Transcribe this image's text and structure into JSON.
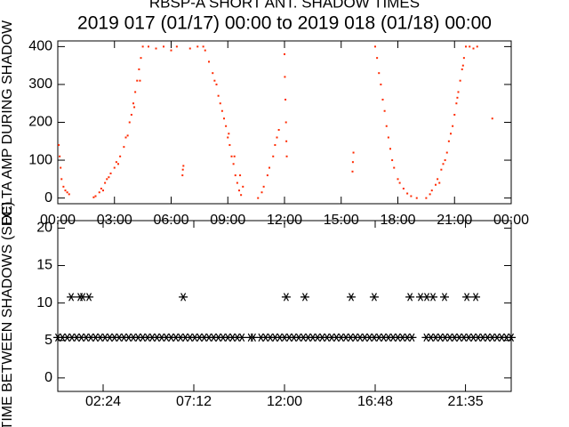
{
  "chart_data": [
    {
      "type": "scatter",
      "marker": "dot",
      "color": "#ff2a00",
      "title": "RBSP-A SHORT ANT. SHADOW TIMES",
      "subtitle": "2019 017 (01/17) 00:00 to 2019 018 (01/18) 00:00",
      "y_label": "DELTA AMP DURING SHADOW",
      "xlim": [
        0,
        24
      ],
      "ylim": [
        -15,
        415
      ],
      "xticks": [
        {
          "value": 0,
          "label": "00:00"
        },
        {
          "value": 3,
          "label": "03:00"
        },
        {
          "value": 6,
          "label": "06:00"
        },
        {
          "value": 9,
          "label": "09:00"
        },
        {
          "value": 12,
          "label": "12:00"
        },
        {
          "value": 15,
          "label": "15:00"
        },
        {
          "value": 18,
          "label": "18:00"
        },
        {
          "value": 21,
          "label": "21:00"
        },
        {
          "value": 24,
          "label": "00:00"
        }
      ],
      "yticks": [
        0,
        100,
        200,
        300,
        400
      ],
      "x": [
        0.05,
        0.1,
        0.15,
        0.2,
        0.3,
        0.4,
        0.5,
        0.6,
        1.9,
        2.0,
        2.2,
        2.3,
        2.5,
        2.6,
        2.8,
        3.0,
        3.1,
        3.3,
        3.5,
        3.6,
        3.8,
        3.9,
        4.0,
        4.1,
        4.2,
        4.3,
        4.4,
        4.5,
        2.4,
        2.7,
        3.2,
        3.7,
        4.05,
        4.35,
        4.8,
        5.2,
        5.6,
        6.0,
        6.3,
        7.0,
        7.4,
        6.6,
        6.62,
        6.65,
        7.7,
        7.8,
        8.0,
        8.2,
        8.3,
        8.5,
        8.6,
        8.8,
        8.9,
        9.0,
        9.1,
        9.2,
        9.3,
        9.4,
        9.5,
        9.6,
        9.7,
        8.4,
        8.7,
        9.05,
        9.35,
        9.65,
        9.8,
        10.6,
        10.8,
        10.9,
        11.1,
        11.2,
        11.4,
        11.5,
        11.6,
        11.7,
        12.0,
        12.02,
        12.05,
        12.08,
        12.1,
        12.12,
        15.6,
        15.62,
        15.65,
        16.8,
        16.9,
        17.0,
        17.1,
        17.2,
        17.3,
        17.4,
        17.5,
        17.6,
        17.7,
        17.8,
        18.0,
        18.1,
        18.3,
        18.5,
        18.7,
        19.0,
        19.5,
        19.7,
        19.8,
        20.0,
        20.1,
        20.3,
        20.4,
        20.6,
        20.7,
        20.9,
        21.0,
        21.1,
        21.2,
        21.3,
        21.4,
        21.5,
        21.6,
        21.8,
        22.0,
        22.2,
        20.2,
        20.5,
        20.8,
        21.15,
        21.45,
        23.0
      ],
      "values": [
        140,
        110,
        80,
        50,
        30,
        20,
        15,
        10,
        2,
        5,
        15,
        25,
        40,
        50,
        65,
        80,
        95,
        110,
        135,
        160,
        200,
        220,
        250,
        280,
        310,
        340,
        370,
        400,
        20,
        55,
        90,
        165,
        240,
        310,
        400,
        395,
        400,
        390,
        400,
        395,
        400,
        60,
        75,
        85,
        400,
        390,
        360,
        330,
        310,
        270,
        250,
        210,
        190,
        160,
        140,
        110,
        90,
        60,
        40,
        20,
        8,
        300,
        230,
        170,
        110,
        60,
        30,
        0,
        15,
        30,
        60,
        80,
        110,
        140,
        160,
        180,
        380,
        320,
        260,
        200,
        150,
        110,
        70,
        95,
        120,
        400,
        370,
        330,
        300,
        260,
        230,
        190,
        160,
        130,
        100,
        80,
        50,
        40,
        25,
        12,
        5,
        0,
        0,
        10,
        20,
        35,
        50,
        75,
        90,
        120,
        150,
        190,
        220,
        250,
        280,
        310,
        340,
        370,
        400,
        400,
        395,
        400,
        40,
        100,
        170,
        265,
        350,
        210
      ]
    },
    {
      "type": "scatter",
      "marker": "asterisk",
      "color": "#000000",
      "y_label": "TIME BETWEEN SHADOWS (SEC)",
      "xlim": [
        0,
        24
      ],
      "ylim": [
        -1.8,
        21
      ],
      "xticks": [
        {
          "value": 2.4,
          "label": "02:24"
        },
        {
          "value": 7.2,
          "label": "07:12"
        },
        {
          "value": 12,
          "label": "12:00"
        },
        {
          "value": 16.8,
          "label": "16:48"
        },
        {
          "value": 21.58,
          "label": "21:35"
        }
      ],
      "yticks": [
        0,
        5,
        10,
        15,
        20
      ],
      "x": [
        0,
        0.25,
        0.5,
        0.75,
        1,
        1.25,
        1.5,
        1.75,
        2,
        2.25,
        2.5,
        2.75,
        3,
        3.25,
        3.5,
        3.75,
        4,
        4.25,
        4.5,
        4.75,
        5,
        5.25,
        5.5,
        5.75,
        6,
        6.25,
        6.5,
        6.75,
        7,
        7.25,
        7.5,
        7.75,
        8,
        8.25,
        8.5,
        8.75,
        9,
        9.25,
        9.5,
        9.75,
        10.2,
        10.35,
        10.75,
        11,
        11.25,
        11.5,
        11.75,
        12,
        12.25,
        12.5,
        12.75,
        13,
        13.25,
        13.5,
        13.75,
        14,
        14.25,
        14.5,
        14.75,
        15,
        15.25,
        15.5,
        15.75,
        16,
        16.25,
        16.5,
        16.75,
        17,
        17.25,
        17.5,
        17.75,
        18,
        18.25,
        18.5,
        18.75,
        19.5,
        19.75,
        20,
        20.25,
        20.5,
        20.75,
        21,
        21.25,
        21.5,
        21.75,
        22,
        22.25,
        22.5,
        22.75,
        23,
        23.25,
        23.5,
        23.75,
        24,
        0.71,
        1.18,
        1.32,
        1.65,
        6.64,
        12.09,
        13.08,
        15.53,
        16.75,
        18.64,
        19.2,
        19.53,
        19.86,
        20.47,
        21.65,
        22.12
      ],
      "values": [
        5.4,
        5.4,
        5.4,
        5.4,
        5.4,
        5.4,
        5.4,
        5.4,
        5.4,
        5.4,
        5.4,
        5.4,
        5.4,
        5.4,
        5.4,
        5.4,
        5.4,
        5.4,
        5.4,
        5.4,
        5.4,
        5.4,
        5.4,
        5.4,
        5.4,
        5.4,
        5.4,
        5.4,
        5.4,
        5.4,
        5.4,
        5.4,
        5.4,
        5.4,
        5.4,
        5.4,
        5.4,
        5.4,
        5.4,
        5.4,
        5.4,
        5.4,
        5.4,
        5.4,
        5.4,
        5.4,
        5.4,
        5.4,
        5.4,
        5.4,
        5.4,
        5.4,
        5.4,
        5.4,
        5.4,
        5.4,
        5.4,
        5.4,
        5.4,
        5.4,
        5.4,
        5.4,
        5.4,
        5.4,
        5.4,
        5.4,
        5.4,
        5.4,
        5.4,
        5.4,
        5.4,
        5.4,
        5.4,
        5.4,
        5.4,
        5.4,
        5.4,
        5.4,
        5.4,
        5.4,
        5.4,
        5.4,
        5.4,
        5.4,
        5.4,
        5.4,
        5.4,
        5.4,
        5.4,
        5.4,
        5.4,
        5.4,
        5.4,
        5.4,
        10.8,
        10.8,
        10.8,
        10.8,
        10.8,
        10.8,
        10.8,
        10.8,
        10.8,
        10.8,
        10.8,
        10.8,
        10.8,
        10.8,
        10.8,
        10.8
      ]
    }
  ]
}
